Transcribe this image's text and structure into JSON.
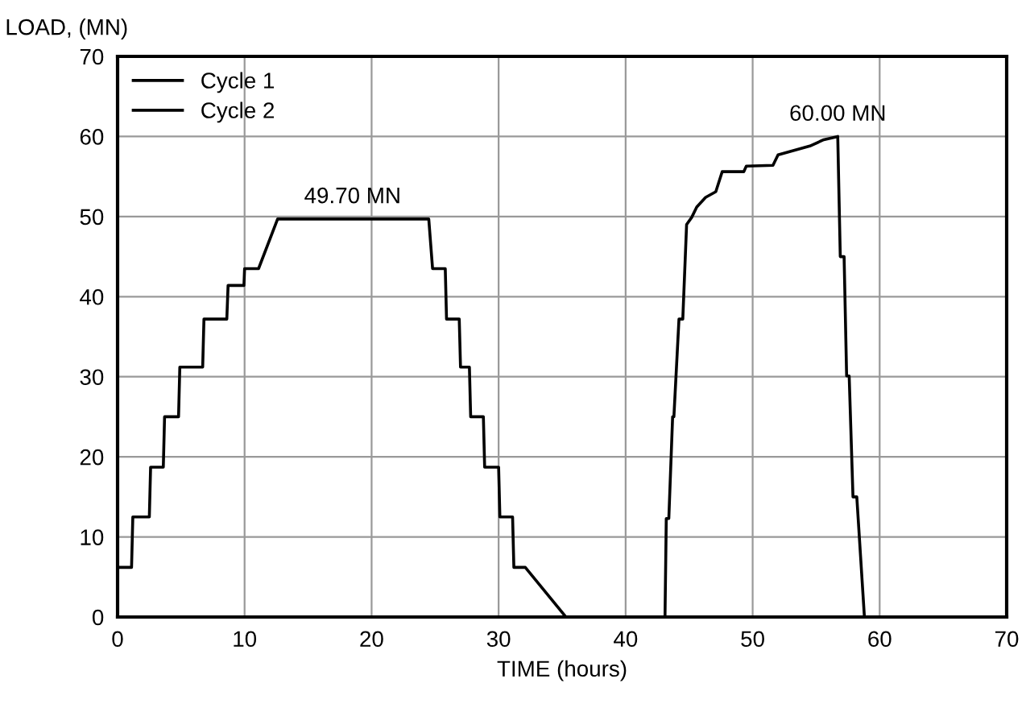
{
  "chart_data": {
    "type": "line",
    "xlabel": "TIME (hours)",
    "ylabel": "LOAD, (MN)",
    "series": [
      {
        "name": "Cycle 1",
        "color": "#000000",
        "x": [
          0.1,
          1.1,
          1.2,
          2.5,
          2.6,
          3.6,
          3.7,
          4.8,
          4.9,
          6.7,
          6.8,
          8.6,
          8.7,
          9.95,
          10.0,
          11.1,
          12.6,
          24.5,
          24.8,
          25.8,
          25.9,
          26.9,
          27.0,
          27.7,
          27.8,
          28.8,
          28.9,
          30.0,
          30.1,
          31.1,
          31.2,
          32.1,
          35.3
        ],
        "values": [
          6.2,
          6.2,
          12.5,
          12.5,
          18.7,
          18.7,
          25.0,
          25.0,
          31.2,
          31.2,
          37.2,
          37.2,
          41.4,
          41.4,
          43.5,
          43.5,
          49.7,
          49.7,
          43.5,
          43.5,
          37.2,
          37.2,
          31.2,
          31.2,
          25.0,
          25.0,
          18.7,
          18.7,
          12.5,
          12.5,
          6.2,
          6.2,
          0
        ]
      },
      {
        "name": "Cycle 2",
        "color": "#000000",
        "x": [
          43.1,
          43.2,
          43.4,
          43.7,
          43.8,
          44.2,
          44.5,
          44.8,
          45.2,
          45.6,
          46.3,
          47.1,
          47.6,
          49.3,
          49.5,
          51.6,
          52.0,
          54.5,
          55.6,
          56.7,
          56.9,
          57.2,
          57.4,
          57.6,
          57.9,
          58.2,
          58.8
        ],
        "values": [
          0,
          12.3,
          12.3,
          25.0,
          25.0,
          37.2,
          37.2,
          49.0,
          49.9,
          51.2,
          52.4,
          53.1,
          55.6,
          55.6,
          56.3,
          56.4,
          57.7,
          58.8,
          59.6,
          60.0,
          45.0,
          45.0,
          30.1,
          30.1,
          15.0,
          15.0,
          0
        ]
      }
    ],
    "annotations": [
      {
        "text": "49.70 MN",
        "x": 18.5,
        "y": 49.7
      },
      {
        "text": "60.00 MN",
        "x": 56.7,
        "y": 60.0
      }
    ],
    "xlim": [
      0,
      70
    ],
    "ylim": [
      0,
      70
    ],
    "xticks": [
      0,
      10,
      20,
      30,
      40,
      50,
      60,
      70
    ],
    "yticks": [
      0,
      10,
      20,
      30,
      40,
      50,
      60,
      70
    ],
    "grid": true,
    "legend": "top left",
    "marker": "none",
    "line_style": "solid"
  }
}
